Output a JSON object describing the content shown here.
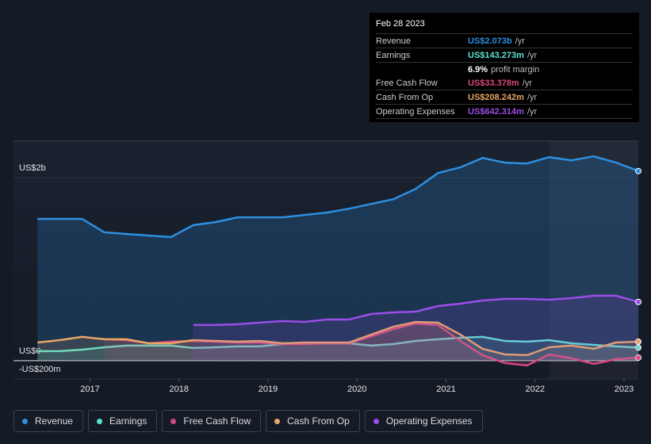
{
  "chart_data": {
    "type": "line",
    "x": [
      2016.41,
      2016.66,
      2016.91,
      2017.16,
      2017.41,
      2017.66,
      2017.91,
      2018.16,
      2018.41,
      2018.66,
      2018.91,
      2019.16,
      2019.41,
      2019.66,
      2019.91,
      2020.16,
      2020.41,
      2020.66,
      2020.91,
      2021.16,
      2021.41,
      2021.66,
      2021.91,
      2022.16,
      2022.41,
      2022.66,
      2022.91,
      2023.16
    ],
    "series": [
      {
        "name": "Revenue",
        "color": "#2d8fe0",
        "values": [
          1550,
          1550,
          1550,
          1403,
          1385,
          1368,
          1351,
          1481,
          1515,
          1567,
          1567,
          1567,
          1593,
          1619,
          1662,
          1714,
          1766,
          1879,
          2052,
          2113,
          2216,
          2165,
          2156,
          2225,
          2190,
          2234,
          2165,
          2073
        ]
      },
      {
        "name": "Earnings",
        "color": "#5ee0cf",
        "values": [
          104,
          104,
          121,
          147,
          165,
          165,
          165,
          139,
          147,
          156,
          156,
          182,
          190,
          190,
          190,
          165,
          182,
          216,
          234,
          251,
          260,
          216,
          208,
          225,
          190,
          173,
          156,
          143.273
        ]
      },
      {
        "name": "Free Cash Flow",
        "color": "#d9467f",
        "values": [
          null,
          null,
          null,
          234,
          225,
          190,
          208,
          216,
          208,
          199,
          199,
          182,
          182,
          190,
          190,
          268,
          346,
          407,
          390,
          216,
          61,
          -26,
          -52,
          69,
          26,
          -35,
          17,
          33.378
        ]
      },
      {
        "name": "Cash From Op",
        "color": "#e8a766",
        "values": [
          199,
          225,
          260,
          234,
          234,
          190,
          190,
          225,
          216,
          208,
          216,
          190,
          199,
          199,
          199,
          286,
          372,
          424,
          416,
          286,
          130,
          69,
          61,
          147,
          165,
          130,
          199,
          208.242
        ]
      },
      {
        "name": "Operating Expenses",
        "color": "#9b4de8",
        "values": [
          null,
          null,
          null,
          null,
          null,
          null,
          null,
          390,
          390,
          398,
          416,
          433,
          424,
          450,
          450,
          511,
          528,
          537,
          597,
          623,
          658,
          675,
          675,
          667,
          684,
          710,
          710,
          642.314
        ]
      }
    ],
    "xlim": [
      2016.14,
      2023.16
    ],
    "xticks": [
      2017,
      2018,
      2019,
      2020,
      2021,
      2022,
      2023
    ],
    "ylim": [
      -200,
      2400
    ],
    "yticks": [
      {
        "value": -200,
        "label": "-US$200m"
      },
      {
        "value": 0,
        "label": "US$0"
      },
      {
        "value": 2000,
        "label": "US$2b"
      }
    ],
    "grid": true,
    "tooltip": {
      "date": "Feb 28 2023",
      "rows": [
        {
          "label": "Revenue",
          "value": "US$2.073b",
          "unit": "/yr",
          "color": "#2d8fe0"
        },
        {
          "label": "Earnings",
          "value": "US$143.273m",
          "unit": "/yr",
          "color": "#5ee0cf"
        },
        {
          "value": "6.9%",
          "unit": "profit margin",
          "color": "#ffffff"
        },
        {
          "label": "Free Cash Flow",
          "value": "US$33.378m",
          "unit": "/yr",
          "color": "#d9467f"
        },
        {
          "label": "Cash From Op",
          "value": "US$208.242m",
          "unit": "/yr",
          "color": "#e8a766"
        },
        {
          "label": "Operating Expenses",
          "value": "US$642.314m",
          "unit": "/yr",
          "color": "#9b4de8"
        }
      ]
    }
  }
}
